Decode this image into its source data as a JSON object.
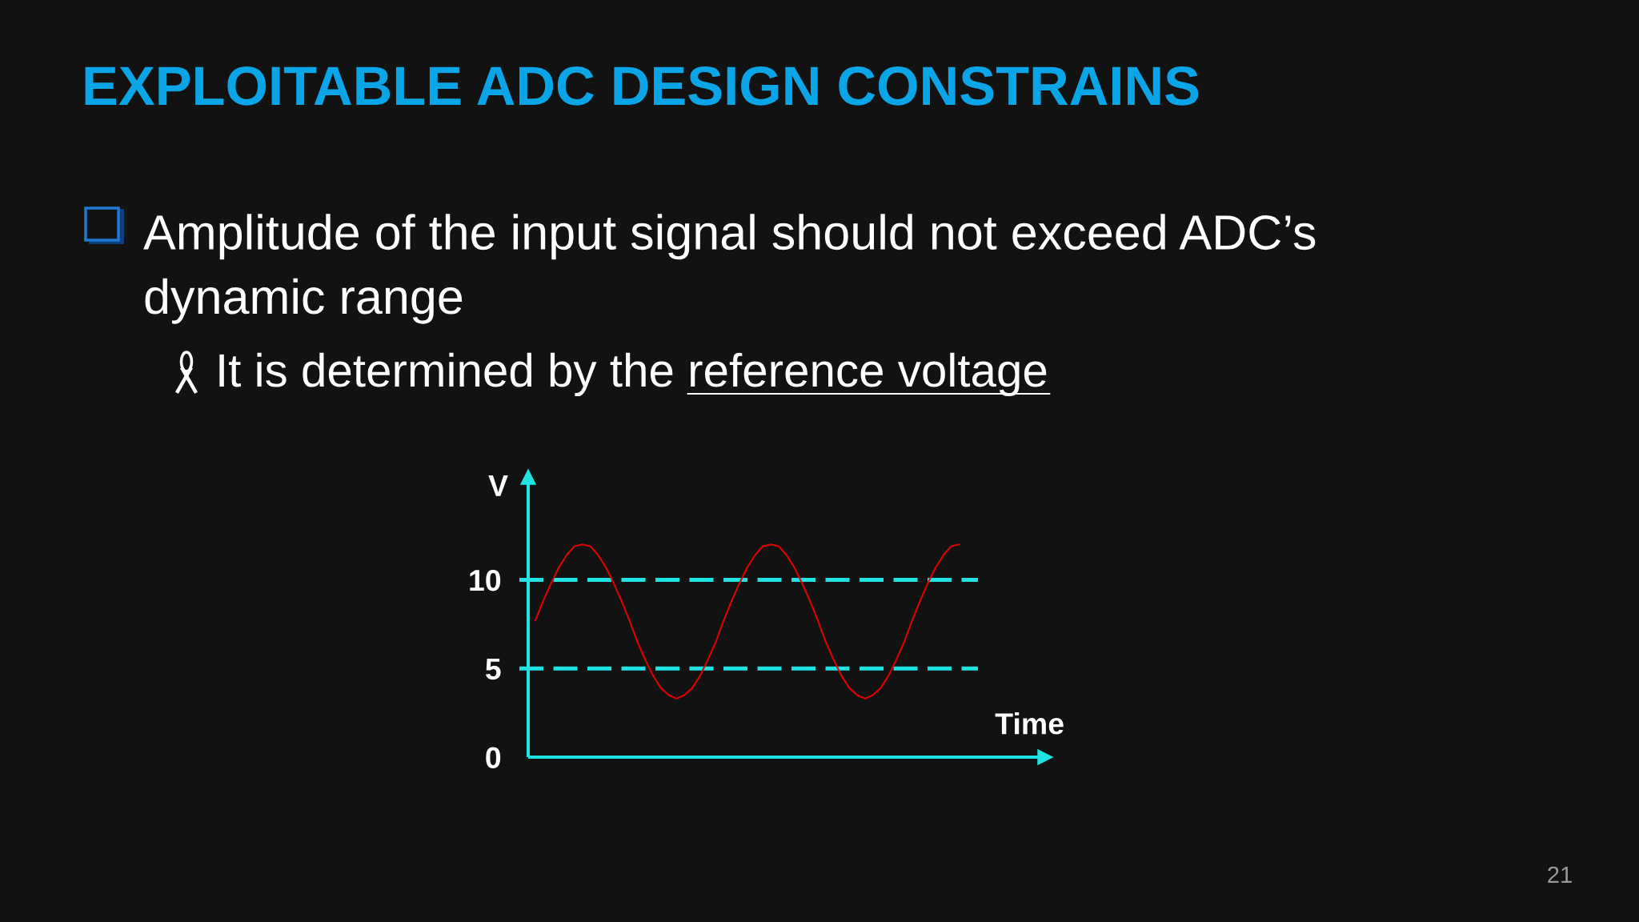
{
  "chart_data": {
    "type": "line",
    "title": "EXPLOITABLE ADC DESIGN CONSTRAINS",
    "xlabel": "Time",
    "ylabel": "V",
    "categories": [
      null,
      null,
      null,
      null,
      null,
      null,
      null,
      null,
      null,
      null,
      null,
      null,
      null,
      null,
      null,
      null,
      null,
      null,
      null,
      null,
      null,
      null,
      null,
      null,
      null,
      null,
      null,
      null,
      null,
      null,
      null,
      null,
      null,
      null,
      null,
      null,
      null,
      null,
      null,
      null,
      null,
      null,
      null,
      null,
      null,
      null,
      null,
      null,
      null,
      null,
      null,
      null,
      null,
      null,
      null
    ],
    "series": [
      {
        "color": "#e00000",
        "values": [
          7.7,
          8.8,
          9.8,
          10.7,
          11.4,
          11.9,
          12.0,
          11.9,
          11.4,
          10.7,
          9.8,
          8.8,
          7.7,
          6.5,
          5.5,
          4.6,
          3.9,
          3.5,
          3.3,
          3.5,
          3.9,
          4.6,
          5.5,
          6.5,
          7.7,
          8.8,
          9.8,
          10.7,
          11.4,
          11.9,
          12.0,
          11.9,
          11.4,
          10.7,
          9.8,
          8.8,
          7.7,
          6.5,
          5.5,
          4.6,
          3.9,
          3.5,
          3.3,
          3.5,
          3.9,
          4.6,
          5.5,
          6.5,
          7.7,
          8.8,
          9.8,
          10.7,
          11.4,
          11.9,
          12.0
        ]
      }
    ],
    "ylim": [
      0,
      15.8
    ],
    "yticks": [
      0,
      5,
      10
    ],
    "tick_labels": "y",
    "ref_lines": [
      {
        "axis": "y",
        "value": 10,
        "color": "#1fe3e3",
        "line_style": "dashed"
      },
      {
        "axis": "y",
        "value": 5,
        "color": "#1fe3e3",
        "line_style": "dashed"
      }
    ],
    "annotations": [
      "Amplitude of the input signal should not exceed ADC’s\ndynamic range",
      "It is determined by the reference voltage",
      "21"
    ]
  }
}
